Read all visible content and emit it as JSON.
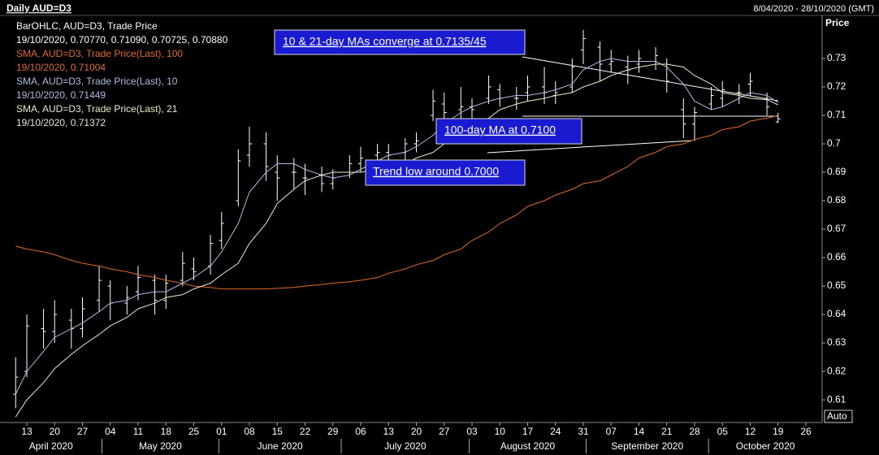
{
  "chart_data": {
    "type": "ohlc",
    "title": "Daily AUD=D3",
    "date_range": "8/04/2020 - 28/10/2020 (GMT)",
    "y_axis_label": "Price",
    "auto_button": "Auto",
    "annotations": [
      "10 & 21-day MAs converge at 0.7135/45",
      "100-day MA at 0.7100",
      "Trend low around 0.7000"
    ],
    "xlim": [
      "2020-04-08",
      "2020-10-28"
    ],
    "ylim": [
      0.6026,
      0.7477
    ],
    "yticks": [
      0.61,
      0.62,
      0.63,
      0.64,
      0.65,
      0.66,
      0.67,
      0.68,
      0.69,
      0.7,
      0.71,
      0.72,
      0.73
    ],
    "xticks": [
      {
        "value": "2020-04-13",
        "label": "13"
      },
      {
        "value": "2020-04-20",
        "label": "20"
      },
      {
        "value": "2020-04-27",
        "label": "27"
      },
      {
        "value": "2020-05-04",
        "label": "04"
      },
      {
        "value": "2020-05-11",
        "label": "11"
      },
      {
        "value": "2020-05-18",
        "label": "18"
      },
      {
        "value": "2020-05-25",
        "label": "25"
      },
      {
        "value": "2020-06-01",
        "label": "01"
      },
      {
        "value": "2020-06-08",
        "label": "08"
      },
      {
        "value": "2020-06-15",
        "label": "15"
      },
      {
        "value": "2020-06-22",
        "label": "22"
      },
      {
        "value": "2020-06-29",
        "label": "29"
      },
      {
        "value": "2020-07-06",
        "label": "06"
      },
      {
        "value": "2020-07-13",
        "label": "13"
      },
      {
        "value": "2020-07-20",
        "label": "20"
      },
      {
        "value": "2020-07-27",
        "label": "27"
      },
      {
        "value": "2020-08-03",
        "label": "03"
      },
      {
        "value": "2020-08-10",
        "label": "10"
      },
      {
        "value": "2020-08-17",
        "label": "17"
      },
      {
        "value": "2020-08-24",
        "label": "24"
      },
      {
        "value": "2020-08-31",
        "label": "31"
      },
      {
        "value": "2020-09-07",
        "label": "07"
      },
      {
        "value": "2020-09-14",
        "label": "14"
      },
      {
        "value": "2020-09-21",
        "label": "21"
      },
      {
        "value": "2020-09-28",
        "label": "28"
      },
      {
        "value": "2020-10-05",
        "label": "05"
      },
      {
        "value": "2020-10-12",
        "label": "12"
      },
      {
        "value": "2020-10-19",
        "label": "19"
      },
      {
        "value": "2020-10-26",
        "label": "26"
      }
    ],
    "months": [
      {
        "value": "2020-04",
        "label": "April 2020"
      },
      {
        "value": "2020-05",
        "label": "May 2020"
      },
      {
        "value": "2020-06",
        "label": "June 2020"
      },
      {
        "value": "2020-07",
        "label": "July 2020"
      },
      {
        "value": "2020-08",
        "label": "August 2020"
      },
      {
        "value": "2020-09",
        "label": "September 2020"
      },
      {
        "value": "2020-10",
        "label": "October 2020"
      }
    ],
    "x": [
      "2020-04-09",
      "2020-04-13",
      "2020-04-16",
      "2020-04-20",
      "2020-04-23",
      "2020-04-27",
      "2020-04-30",
      "2020-05-04",
      "2020-05-07",
      "2020-05-11",
      "2020-05-14",
      "2020-05-18",
      "2020-05-21",
      "2020-05-25",
      "2020-05-28",
      "2020-06-01",
      "2020-06-04",
      "2020-06-08",
      "2020-06-11",
      "2020-06-15",
      "2020-06-18",
      "2020-06-22",
      "2020-06-25",
      "2020-06-29",
      "2020-07-02",
      "2020-07-06",
      "2020-07-09",
      "2020-07-13",
      "2020-07-16",
      "2020-07-20",
      "2020-07-23",
      "2020-07-27",
      "2020-07-30",
      "2020-08-03",
      "2020-08-06",
      "2020-08-10",
      "2020-08-13",
      "2020-08-17",
      "2020-08-20",
      "2020-08-24",
      "2020-08-27",
      "2020-08-31",
      "2020-09-03",
      "2020-09-07",
      "2020-09-10",
      "2020-09-14",
      "2020-09-17",
      "2020-09-21",
      "2020-09-24",
      "2020-09-28",
      "2020-10-01",
      "2020-10-05",
      "2020-10-08",
      "2020-10-12",
      "2020-10-15",
      "2020-10-19"
    ],
    "series": [
      {
        "name": "BarOHLC, AUD=D3, Trade Price",
        "last": "19/10/2020, 0.70770, 0.71090, 0.70725, 0.70880",
        "color": "#ffffff",
        "open": [
          0.612,
          0.62,
          0.635,
          0.634,
          0.638,
          0.635,
          0.645,
          0.65,
          0.644,
          0.648,
          0.652,
          0.645,
          0.652,
          0.656,
          0.657,
          0.666,
          0.68,
          0.696,
          0.7,
          0.69,
          0.69,
          0.688,
          0.689,
          0.686,
          0.69,
          0.693,
          0.696,
          0.697,
          0.697,
          0.7,
          0.71,
          0.714,
          0.712,
          0.713,
          0.716,
          0.719,
          0.716,
          0.718,
          0.72,
          0.717,
          0.72,
          0.733,
          0.734,
          0.728,
          0.727,
          0.728,
          0.729,
          0.728,
          0.712,
          0.707,
          0.714,
          0.716,
          0.718,
          0.721,
          0.716,
          0.7077
        ],
        "high": [
          0.625,
          0.64,
          0.642,
          0.645,
          0.642,
          0.646,
          0.657,
          0.652,
          0.65,
          0.657,
          0.654,
          0.654,
          0.662,
          0.66,
          0.668,
          0.676,
          0.698,
          0.706,
          0.704,
          0.696,
          0.695,
          0.693,
          0.692,
          0.691,
          0.696,
          0.699,
          0.7,
          0.7,
          0.702,
          0.704,
          0.719,
          0.718,
          0.72,
          0.716,
          0.724,
          0.721,
          0.72,
          0.724,
          0.727,
          0.722,
          0.73,
          0.74,
          0.736,
          0.733,
          0.731,
          0.733,
          0.734,
          0.73,
          0.716,
          0.713,
          0.72,
          0.722,
          0.721,
          0.725,
          0.718,
          0.7109
        ],
        "low": [
          0.607,
          0.618,
          0.628,
          0.63,
          0.628,
          0.632,
          0.641,
          0.638,
          0.64,
          0.645,
          0.64,
          0.642,
          0.65,
          0.652,
          0.654,
          0.663,
          0.678,
          0.692,
          0.687,
          0.68,
          0.684,
          0.682,
          0.683,
          0.684,
          0.688,
          0.69,
          0.693,
          0.692,
          0.694,
          0.697,
          0.708,
          0.708,
          0.708,
          0.708,
          0.714,
          0.713,
          0.712,
          0.715,
          0.714,
          0.714,
          0.718,
          0.728,
          0.722,
          0.725,
          0.721,
          0.725,
          0.726,
          0.718,
          0.702,
          0.701,
          0.712,
          0.713,
          0.714,
          0.717,
          0.71,
          0.70725
        ],
        "close": [
          0.618,
          0.636,
          0.634,
          0.64,
          0.635,
          0.642,
          0.652,
          0.644,
          0.646,
          0.653,
          0.645,
          0.651,
          0.658,
          0.655,
          0.665,
          0.672,
          0.694,
          0.7,
          0.692,
          0.688,
          0.69,
          0.688,
          0.686,
          0.688,
          0.693,
          0.695,
          0.697,
          0.696,
          0.7,
          0.701,
          0.715,
          0.711,
          0.713,
          0.712,
          0.72,
          0.716,
          0.716,
          0.72,
          0.718,
          0.718,
          0.727,
          0.737,
          0.728,
          0.729,
          0.726,
          0.73,
          0.731,
          0.722,
          0.707,
          0.711,
          0.717,
          0.719,
          0.718,
          0.722,
          0.713,
          0.7088
        ]
      },
      {
        "name": "SMA, AUD=D3, Trade Price(Last),  100",
        "last": "19/10/2020, 0.71004",
        "color": "#e0692a",
        "values": [
          0.664,
          0.663,
          0.662,
          0.661,
          0.659,
          0.658,
          0.657,
          0.656,
          0.655,
          0.654,
          0.653,
          0.652,
          0.651,
          0.65,
          0.6495,
          0.649,
          0.649,
          0.649,
          0.649,
          0.6492,
          0.6495,
          0.65,
          0.6505,
          0.651,
          0.6515,
          0.652,
          0.653,
          0.6545,
          0.656,
          0.6575,
          0.659,
          0.661,
          0.663,
          0.666,
          0.669,
          0.672,
          0.675,
          0.678,
          0.68,
          0.682,
          0.684,
          0.686,
          0.687,
          0.689,
          0.692,
          0.695,
          0.697,
          0.699,
          0.7,
          0.7015,
          0.703,
          0.705,
          0.706,
          0.708,
          0.709,
          0.71
        ]
      },
      {
        "name": "SMA, AUD=D3, Trade Price(Last),  10",
        "last": "19/10/2020, 0.71449",
        "color": "#a8bde6",
        "values": [
          0.612,
          0.62,
          0.627,
          0.632,
          0.635,
          0.637,
          0.641,
          0.644,
          0.645,
          0.647,
          0.648,
          0.648,
          0.651,
          0.653,
          0.657,
          0.662,
          0.672,
          0.683,
          0.69,
          0.693,
          0.693,
          0.691,
          0.689,
          0.688,
          0.689,
          0.691,
          0.694,
          0.696,
          0.697,
          0.699,
          0.703,
          0.707,
          0.711,
          0.713,
          0.715,
          0.716,
          0.717,
          0.717,
          0.718,
          0.719,
          0.721,
          0.726,
          0.729,
          0.73,
          0.729,
          0.729,
          0.729,
          0.727,
          0.721,
          0.715,
          0.712,
          0.713,
          0.716,
          0.718,
          0.717,
          0.7145
        ]
      },
      {
        "name": "SMA, AUD=D3, Trade Price(Last),  21",
        "last": "19/10/2020, 0.71372",
        "color": "#ecebc4",
        "values": [
          0.604,
          0.61,
          0.616,
          0.621,
          0.626,
          0.629,
          0.633,
          0.636,
          0.639,
          0.642,
          0.644,
          0.646,
          0.647,
          0.649,
          0.651,
          0.654,
          0.658,
          0.665,
          0.672,
          0.679,
          0.684,
          0.687,
          0.689,
          0.69,
          0.69,
          0.69,
          0.691,
          0.692,
          0.693,
          0.695,
          0.697,
          0.7,
          0.703,
          0.706,
          0.709,
          0.712,
          0.714,
          0.715,
          0.716,
          0.717,
          0.718,
          0.72,
          0.722,
          0.724,
          0.726,
          0.727,
          0.728,
          0.728,
          0.727,
          0.724,
          0.721,
          0.718,
          0.717,
          0.716,
          0.7155,
          0.7137
        ]
      }
    ]
  }
}
